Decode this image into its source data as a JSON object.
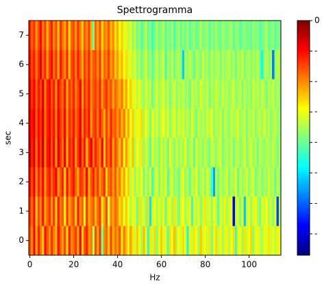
{
  "chart_data": {
    "type": "heatmap",
    "title": "Spettrogramma",
    "x_label": "Hz",
    "y_label": "sec",
    "xlim": [
      -0.5,
      114.5
    ],
    "xticks": [
      0,
      20,
      40,
      60,
      80,
      100
    ],
    "ylim": [
      -0.5,
      7.5
    ],
    "yticks": [
      0,
      1,
      2,
      3,
      4,
      5,
      6,
      7
    ],
    "colormap": "jet",
    "clim": [
      -77,
      0
    ],
    "cticks": [
      0,
      {
        "value": -10,
        "label": "-"
      },
      {
        "value": -20,
        "label": "-"
      },
      {
        "value": -30,
        "label": "-"
      },
      {
        "value": -40,
        "label": "-"
      },
      {
        "value": -50,
        "label": "-"
      },
      {
        "value": -60,
        "label": "-"
      },
      {
        "value": -70,
        "label": "-"
      }
    ],
    "x": [
      0,
      1,
      2,
      3,
      4,
      5,
      6,
      7,
      8,
      9,
      10,
      11,
      12,
      13,
      14,
      15,
      16,
      17,
      18,
      19,
      20,
      21,
      22,
      23,
      24,
      25,
      26,
      27,
      28,
      29,
      30,
      31,
      32,
      33,
      34,
      35,
      36,
      37,
      38,
      39,
      40,
      41,
      42,
      43,
      44,
      45,
      46,
      47,
      48,
      49,
      50,
      51,
      52,
      53,
      54,
      55,
      56,
      57,
      58,
      59,
      60,
      61,
      62,
      63,
      64,
      65,
      66,
      67,
      68,
      69,
      70,
      71,
      72,
      73,
      74,
      75,
      76,
      77,
      78,
      79,
      80,
      81,
      82,
      83,
      84,
      85,
      86,
      87,
      88,
      89,
      90,
      91,
      92,
      93,
      94,
      95,
      96,
      97,
      98,
      99,
      100,
      101,
      102,
      103,
      104,
      105,
      106,
      107,
      108,
      109,
      110,
      111,
      112,
      113,
      114
    ],
    "y": [
      0,
      1,
      2,
      3,
      4,
      5,
      6,
      7
    ],
    "z": [
      [
        -14,
        -20,
        -9,
        -22,
        -12,
        -18,
        -25,
        -10,
        -16,
        -21,
        -13,
        -19,
        -24,
        -11,
        -17,
        -22,
        -15,
        -27,
        -12,
        -20,
        -18,
        -14,
        -23,
        -10,
        -26,
        -16,
        -12,
        -21,
        -19,
        -35,
        -15,
        -22,
        -13,
        -40,
        -20,
        -17,
        -25,
        -14,
        -23,
        -18,
        -21,
        -16,
        -28,
        -19,
        -24,
        -30,
        -22,
        -27,
        -33,
        -25,
        -29,
        -36,
        -24,
        -31,
        -45,
        -27,
        -33,
        -26,
        -38,
        -30,
        -25,
        -32,
        -28,
        -42,
        -27,
        -30,
        -24,
        -35,
        -29,
        -33,
        -26,
        -31,
        -48,
        -28,
        -34,
        -27,
        -30,
        -37,
        -25,
        -32,
        -29,
        -33,
        -27,
        -39,
        -30,
        -26,
        -34,
        -28,
        -36,
        -31,
        -28,
        -35,
        -30,
        -26,
        -44,
        -32,
        -29,
        -37,
        -27,
        -33,
        -30,
        -26,
        -38,
        -31,
        -28,
        -34,
        -36,
        -29,
        -32,
        -27,
        -33,
        -30,
        -35,
        -28,
        -31
      ],
      [
        -12,
        -18,
        -10,
        -24,
        -15,
        -20,
        -11,
        -23,
        -17,
        -13,
        -21,
        -14,
        -26,
        -12,
        -19,
        -16,
        -28,
        -13,
        -22,
        -18,
        -15,
        -25,
        -11,
        -20,
        -17,
        -30,
        -14,
        -23,
        -19,
        -16,
        -24,
        -18,
        -13,
        -27,
        -21,
        -15,
        -33,
        -19,
        -22,
        -17,
        -20,
        -26,
        -23,
        -31,
        -25,
        -29,
        -36,
        -28,
        -32,
        -40,
        -27,
        -34,
        -30,
        -38,
        -26,
        -50,
        -33,
        -29,
        -36,
        -31,
        -35,
        -28,
        -41,
        -32,
        -30,
        -37,
        -27,
        -34,
        -39,
        -31,
        -29,
        -36,
        -33,
        -28,
        -45,
        -31,
        -35,
        -30,
        -38,
        -32,
        -27,
        -34,
        -31,
        -37,
        -29,
        -33,
        -42,
        -30,
        -35,
        -28,
        -36,
        -32,
        -30,
        -68,
        -34,
        -31,
        -39,
        -29,
        -52,
        -33,
        -30,
        -37,
        -32,
        -28,
        -35,
        -40,
        -31,
        -34,
        -29,
        -36,
        -32,
        -38,
        -30,
        -62,
        -34
      ],
      [
        -9,
        -15,
        -8,
        -20,
        -12,
        -17,
        -10,
        -22,
        -14,
        -11,
        -18,
        -13,
        -9,
        -21,
        -16,
        -12,
        -25,
        -10,
        -19,
        -14,
        -11,
        -17,
        -23,
        -13,
        -15,
        -20,
        -10,
        -24,
        -16,
        -12,
        -19,
        -14,
        -22,
        -17,
        -13,
        -26,
        -18,
        -15,
        -21,
        -16,
        -23,
        -19,
        -27,
        -22,
        -30,
        -25,
        -34,
        -28,
        -37,
        -31,
        -35,
        -29,
        -40,
        -33,
        -38,
        -30,
        -44,
        -34,
        -31,
        -39,
        -32,
        -36,
        -29,
        -42,
        -34,
        -31,
        -38,
        -35,
        -40,
        -33,
        -30,
        -37,
        -34,
        -41,
        -32,
        -36,
        -30,
        -39,
        -35,
        -33,
        -38,
        -31,
        -36,
        -43,
        -55,
        -34,
        -40,
        -32,
        -37,
        -35,
        -31,
        -39,
        -34,
        -36,
        -30,
        -41,
        -33,
        -37,
        -35,
        -32,
        -38,
        -34,
        -31,
        -40,
        -36,
        -33,
        -39,
        -35,
        -37,
        -32,
        -36,
        -34,
        -41,
        -33,
        -38
      ],
      [
        -5,
        -12,
        -7,
        -18,
        -9,
        -14,
        -6,
        -20,
        -11,
        -8,
        -16,
        -10,
        -22,
        -8,
        -13,
        -19,
        -9,
        -24,
        -12,
        -15,
        -10,
        -21,
        -13,
        -8,
        -17,
        -11,
        -23,
        -14,
        -9,
        -19,
        -12,
        -16,
        -20,
        -10,
        -25,
        -14,
        -18,
        -11,
        -22,
        -15,
        -19,
        -24,
        -17,
        -28,
        -21,
        -26,
        -32,
        -24,
        -35,
        -29,
        -33,
        -27,
        -38,
        -31,
        -36,
        -42,
        -30,
        -37,
        -34,
        -39,
        -31,
        -36,
        -33,
        -40,
        -28,
        -35,
        -38,
        -32,
        -37,
        -34,
        -36,
        -30,
        -39,
        -35,
        -33,
        -41,
        -31,
        -37,
        -34,
        -38,
        -33,
        -36,
        -40,
        -32,
        -35,
        -38,
        -34,
        -31,
        -39,
        -36,
        -34,
        -37,
        -32,
        -40,
        -35,
        -33,
        -38,
        -36,
        -31,
        -39,
        -35,
        -32,
        -37,
        -34,
        -40,
        -33,
        -36,
        -38,
        -34,
        -35,
        -37,
        -33,
        -36,
        -39,
        -34
      ],
      [
        -6,
        -11,
        -8,
        -16,
        -10,
        -13,
        -7,
        -19,
        -12,
        -9,
        -15,
        -11,
        -20,
        -9,
        -14,
        -17,
        -10,
        -22,
        -13,
        -16,
        -11,
        -18,
        -14,
        -9,
        -20,
        -12,
        -16,
        -10,
        -21,
        -15,
        -13,
        -19,
        -11,
        -17,
        -23,
        -14,
        -20,
        -12,
        -18,
        -16,
        -21,
        -17,
        -24,
        -19,
        -27,
        -22,
        -30,
        -25,
        -33,
        -28,
        -31,
        -26,
        -36,
        -29,
        -34,
        -39,
        -30,
        -35,
        -32,
        -37,
        -33,
        -29,
        -36,
        -31,
        -38,
        -34,
        -30,
        -37,
        -32,
        -35,
        -31,
        -36,
        -33,
        -38,
        -30,
        -35,
        -40,
        -32,
        -36,
        -34,
        -37,
        -32,
        -35,
        -30,
        -38,
        -34,
        -36,
        -31,
        -39,
        -33,
        -35,
        -38,
        -32,
        -36,
        -34,
        -31,
        -37,
        -35,
        -33,
        -39,
        -34,
        -36,
        -32,
        -38,
        -35,
        -33,
        -37,
        -31,
        -36,
        -34,
        -38,
        -35,
        -33,
        -37,
        -36
      ],
      [
        -7,
        -13,
        -9,
        -17,
        -11,
        -15,
        -8,
        -20,
        -12,
        -10,
        -16,
        -12,
        -21,
        -10,
        -15,
        -18,
        -11,
        -23,
        -14,
        -17,
        -12,
        -19,
        -15,
        -10,
        -22,
        -13,
        -17,
        -11,
        -20,
        -16,
        -14,
        -18,
        -12,
        -21,
        -16,
        -13,
        -19,
        -15,
        -22,
        -17,
        -20,
        -23,
        -18,
        -26,
        -22,
        -29,
        -25,
        -32,
        -28,
        -35,
        -30,
        -34,
        -38,
        -31,
        -36,
        -33,
        -40,
        -35,
        -32,
        -37,
        -34,
        -31,
        -37,
        -33,
        -39,
        -35,
        -32,
        -38,
        -34,
        -36,
        -33,
        -37,
        -35,
        -40,
        -32,
        -36,
        -34,
        -38,
        -31,
        -35,
        -36,
        -33,
        -39,
        -34,
        -37,
        -32,
        -35,
        -38,
        -33,
        -36,
        -34,
        -37,
        -35,
        -32,
        -38,
        -36,
        -33,
        -39,
        -34,
        -37,
        -35,
        -38,
        -32,
        -36,
        -34,
        -37,
        -33,
        -35,
        -39,
        -34,
        -36,
        -33,
        -38,
        -35,
        -37
      ],
      [
        -9,
        -15,
        -11,
        -19,
        -13,
        -8,
        -17,
        -12,
        -21,
        -14,
        -10,
        -18,
        -13,
        -22,
        -11,
        -16,
        -20,
        -12,
        -24,
        -15,
        -13,
        -19,
        -11,
        -17,
        -23,
        -14,
        -18,
        -12,
        -21,
        -16,
        -15,
        -20,
        -13,
        -24,
        -17,
        -19,
        -14,
        -22,
        -18,
        -25,
        -21,
        -27,
        -23,
        -30,
        -26,
        -33,
        -28,
        -36,
        -31,
        -38,
        -34,
        -40,
        -36,
        -32,
        -39,
        -35,
        -42,
        -37,
        -33,
        -38,
        -36,
        -32,
        -44,
        -35,
        -38,
        -33,
        -40,
        -36,
        -34,
        -39,
        -52,
        -35,
        -38,
        -33,
        -37,
        -41,
        -34,
        -36,
        -39,
        -32,
        -37,
        -35,
        -40,
        -33,
        -38,
        -36,
        -34,
        -39,
        -35,
        -37,
        -36,
        -33,
        -38,
        -35,
        -40,
        -34,
        -37,
        -32,
        -39,
        -36,
        -34,
        -38,
        -35,
        -37,
        -33,
        -39,
        -48,
        -36,
        -34,
        -38,
        -35,
        -58,
        -37,
        -34,
        -36
      ],
      [
        -11,
        -17,
        -13,
        -21,
        -15,
        -10,
        -19,
        -14,
        -23,
        -16,
        -12,
        -20,
        -15,
        -24,
        -13,
        -18,
        -22,
        -14,
        -26,
        -17,
        -15,
        -21,
        -13,
        -19,
        -25,
        -16,
        -20,
        -14,
        -23,
        -40,
        -17,
        -22,
        -15,
        -26,
        -19,
        -21,
        -16,
        -24,
        -20,
        -27,
        -23,
        -29,
        -25,
        -32,
        -28,
        -35,
        -30,
        -38,
        -33,
        -40,
        -36,
        -42,
        -38,
        -34,
        -41,
        -37,
        -44,
        -39,
        -35,
        -40,
        -38,
        -34,
        -42,
        -37,
        -40,
        -35,
        -43,
        -38,
        -36,
        -41,
        -37,
        -40,
        -35,
        -42,
        -38,
        -36,
        -41,
        -39,
        -34,
        -40,
        -38,
        -36,
        -42,
        -37,
        -40,
        -35,
        -39,
        -41,
        -36,
        -38,
        -40,
        -37,
        -35,
        -41,
        -38,
        -36,
        -42,
        -39,
        -37,
        -40,
        -38,
        -41,
        -36,
        -39,
        -37,
        -42,
        -40,
        -38,
        -35,
        -41,
        -39,
        -37,
        -42,
        -38,
        -40
      ]
    ]
  }
}
